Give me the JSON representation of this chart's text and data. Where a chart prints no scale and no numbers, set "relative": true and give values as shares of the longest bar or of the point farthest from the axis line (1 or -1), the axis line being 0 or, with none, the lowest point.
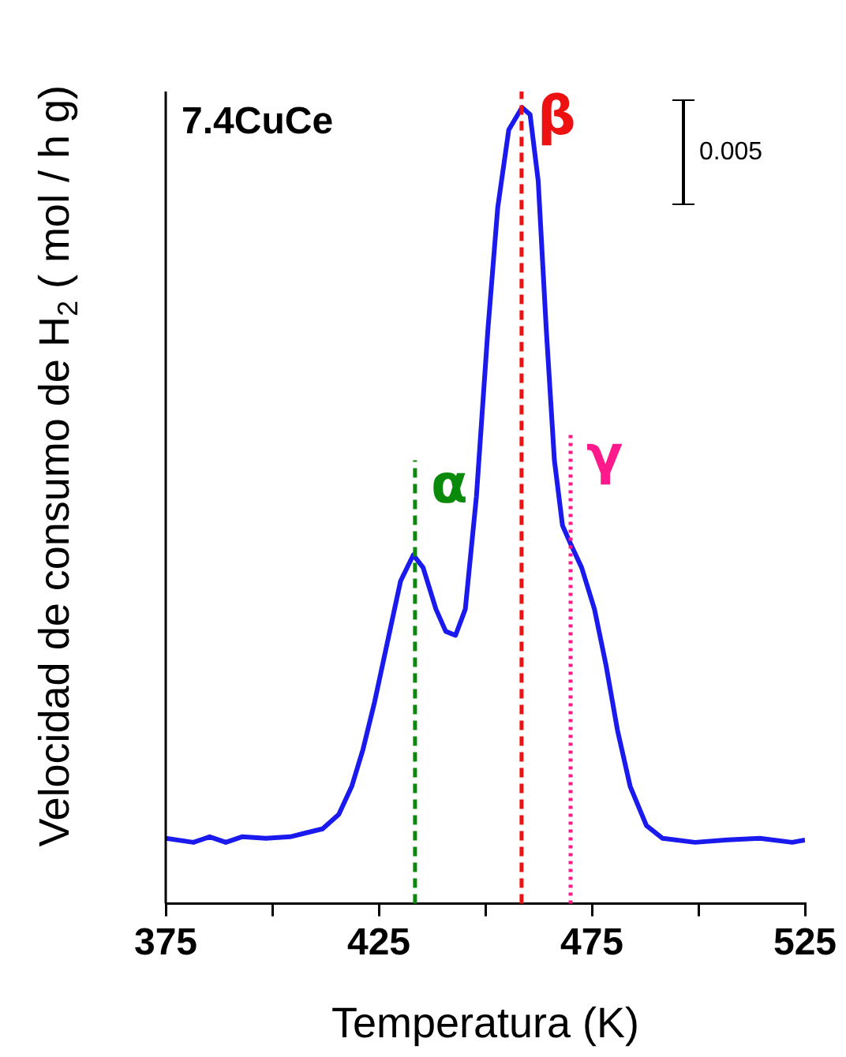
{
  "chart_data": {
    "type": "line",
    "title": "7.4CuCe",
    "xlabel": "Temperatura (K)",
    "ylabel": "Velocidad de consumo de H$_{2}$ ( mol / h g)",
    "relative": true,
    "x": [
      375,
      381.5,
      385.3,
      389.1,
      392.9,
      398.5,
      404.2,
      408,
      411.8,
      415.6,
      418.7,
      421.3,
      424,
      427,
      430.1,
      433.1,
      435.4,
      438.4,
      440.7,
      443,
      445.3,
      447.9,
      450.6,
      452.9,
      455.5,
      458.6,
      460.5,
      462.4,
      464.3,
      466.2,
      468.1,
      470,
      472.6,
      475.6,
      478.3,
      481,
      484,
      487.8,
      491.6,
      499.2,
      506.8,
      514.4,
      522,
      525
    ],
    "series": [
      {
        "color": "#1a1aee",
        "values": [
          0.082,
          0.077,
          0.084,
          0.077,
          0.084,
          0.082,
          0.084,
          0.089,
          0.094,
          0.112,
          0.148,
          0.194,
          0.253,
          0.328,
          0.405,
          0.438,
          0.422,
          0.37,
          0.342,
          0.337,
          0.37,
          0.511,
          0.721,
          0.874,
          0.972,
          1,
          0.991,
          0.908,
          0.721,
          0.557,
          0.475,
          0.452,
          0.422,
          0.37,
          0.3,
          0.218,
          0.147,
          0.098,
          0.082,
          0.077,
          0.08,
          0.082,
          0.077,
          0.08
        ]
      }
    ],
    "xlim": [
      375,
      525
    ],
    "xticks": [
      375,
      {
        "value": 400,
        "label": null
      },
      425,
      {
        "value": 450,
        "label": null
      },
      475,
      {
        "value": 500,
        "label": null
      },
      525
    ],
    "ref_lines": [
      {
        "axis": "x",
        "value": 433.5,
        "label": "α",
        "color": "#0a8a0a",
        "line_style": "dashed"
      },
      {
        "axis": "x",
        "value": 458.5,
        "label": "β",
        "color": "#ee1111",
        "line_style": "dashed"
      },
      {
        "axis": "x",
        "value": 470,
        "label": "γ",
        "color": "#ff1a8c",
        "line_style": "dotted"
      }
    ],
    "annotations": [
      "0.005"
    ],
    "grid": false,
    "legend": false,
    "marker": "none",
    "line_style": "solid"
  }
}
